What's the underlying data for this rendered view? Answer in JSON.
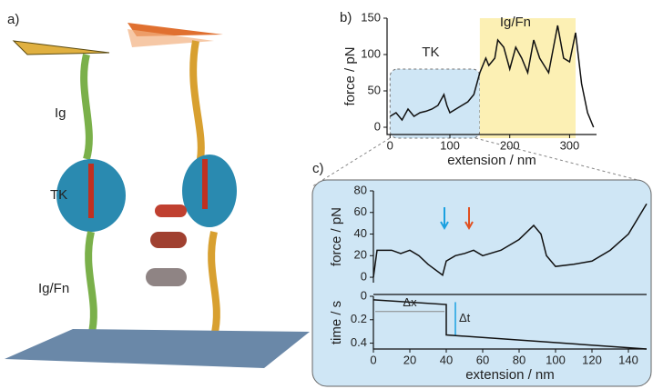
{
  "panel_labels": [
    "a)",
    "b)",
    "c)"
  ],
  "illustration_labels": [
    "Ig",
    "TK",
    "Ig/Fn"
  ],
  "chart_data": [
    {
      "type": "line",
      "xlabel": "extension / nm",
      "ylabel": "force / pN",
      "xlim": [
        -5,
        345
      ],
      "xticks": [
        0,
        100,
        200,
        300
      ],
      "ylim": [
        -10,
        150
      ],
      "yticks": [
        0,
        50,
        100,
        150
      ],
      "regions": [
        {
          "label": "TK",
          "x": [
            0,
            150
          ],
          "color": "#cfe6f5"
        },
        {
          "label": "Ig/Fn",
          "x": [
            150,
            310
          ],
          "color": "#fcf0b4"
        }
      ],
      "series": [
        {
          "color": "#111111",
          "x": [
            0,
            10,
            20,
            30,
            40,
            50,
            60,
            70,
            80,
            90,
            95,
            100,
            110,
            120,
            130,
            140,
            150,
            160,
            165,
            175,
            180,
            190,
            200,
            210,
            220,
            230,
            240,
            250,
            265,
            280,
            290,
            300,
            310,
            320,
            330,
            340
          ],
          "values": [
            15,
            20,
            10,
            25,
            15,
            20,
            22,
            25,
            30,
            45,
            30,
            20,
            25,
            30,
            35,
            45,
            75,
            95,
            85,
            95,
            120,
            110,
            80,
            110,
            95,
            75,
            120,
            95,
            75,
            140,
            95,
            90,
            130,
            60,
            20,
            0
          ]
        }
      ]
    },
    {
      "type": "line",
      "ylabel": "force / pN",
      "xlim": [
        0,
        150
      ],
      "ylim": [
        -5,
        80
      ],
      "yticks": [
        0,
        20,
        40,
        60,
        80
      ],
      "series": [
        {
          "color": "#111111",
          "x": [
            0,
            2,
            10,
            15,
            20,
            25,
            30,
            38,
            40,
            45,
            50,
            55,
            60,
            70,
            80,
            88,
            92,
            95,
            100,
            110,
            120,
            130,
            140,
            150
          ],
          "values": [
            0,
            25,
            25,
            22,
            25,
            20,
            12,
            2,
            15,
            20,
            22,
            25,
            20,
            25,
            35,
            48,
            40,
            20,
            10,
            12,
            15,
            25,
            40,
            68
          ]
        }
      ]
    },
    {
      "type": "line",
      "xlabel": "extension / nm",
      "ylabel": "time / s",
      "xlim": [
        0,
        150
      ],
      "xticks": [
        0,
        20,
        40,
        60,
        80,
        100,
        120,
        140
      ],
      "ylim": [
        0.45,
        0
      ],
      "yticks": [
        0,
        0.2,
        0.4
      ],
      "annotations": [
        "Δx",
        "Δt"
      ],
      "series": [
        {
          "color": "#111111",
          "x": [
            0,
            40,
            40,
            150
          ],
          "values": [
            0.03,
            0.07,
            0.33,
            0.45
          ]
        }
      ]
    }
  ]
}
